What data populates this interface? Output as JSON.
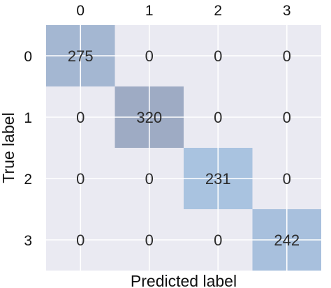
{
  "chart_data": {
    "type": "heatmap",
    "title": "",
    "xlabel": "Predicted label",
    "ylabel": "True label",
    "x_categories": [
      "0",
      "1",
      "2",
      "3"
    ],
    "y_categories": [
      "0",
      "1",
      "2",
      "3"
    ],
    "matrix": [
      [
        275,
        0,
        0,
        0
      ],
      [
        0,
        320,
        0,
        0
      ],
      [
        0,
        0,
        231,
        0
      ],
      [
        0,
        0,
        0,
        242
      ]
    ],
    "vmin": 0,
    "vmax": 320,
    "grid": true,
    "x_tick_position": "top",
    "colors": {
      "background": "#eaeaf2",
      "grid": "#ffffff",
      "cell_low": "#a9c3e0",
      "cell_high": "#9eabc4"
    }
  }
}
